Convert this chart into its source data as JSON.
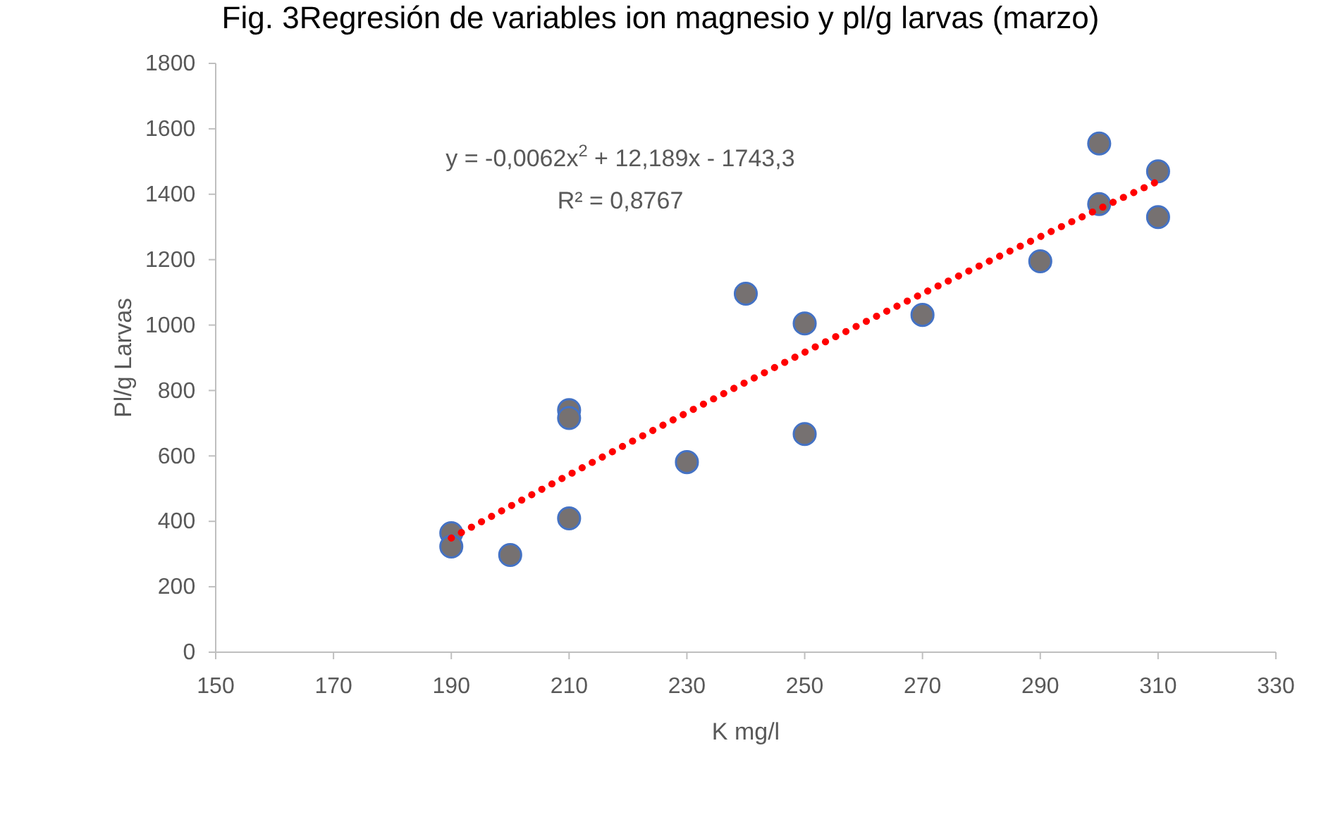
{
  "chart_data": {
    "type": "scatter",
    "title": "Fig. 3Regresión de variables ion magnesio y pl/g larvas (marzo)",
    "xlabel": "K mg/l",
    "ylabel": "Pl/g Larvas",
    "xlim": [
      150,
      330
    ],
    "xticks": [
      150,
      170,
      190,
      210,
      230,
      250,
      270,
      290,
      310,
      330
    ],
    "ylim": [
      0,
      1800
    ],
    "yticks": [
      0,
      200,
      400,
      600,
      800,
      1000,
      1200,
      1400,
      1600,
      1800
    ],
    "grid": false,
    "marker": "circle",
    "annotations": [
      "y = -0,0062x$^{2}$ + 12,189x - 1743,3",
      "R² = 0,8767"
    ],
    "series": [
      {
        "color": "#767171",
        "x": [
          190,
          190,
          200,
          210,
          210,
          210,
          230,
          240,
          250,
          250,
          270,
          290,
          300,
          300,
          310,
          310
        ],
        "values": [
          364,
          323,
          297,
          740,
          716,
          409,
          581,
          1096,
          1005,
          667,
          1031,
          1195,
          1555,
          1370,
          1470,
          1330
        ]
      },
      {
        "type": "line",
        "color": "#ff0000",
        "line_style": "dotted",
        "marker": "none",
        "x": [
          190,
          220,
          250,
          280,
          310
        ],
        "values": [
          349,
          638,
          917,
          1184,
          1440
        ]
      }
    ]
  }
}
